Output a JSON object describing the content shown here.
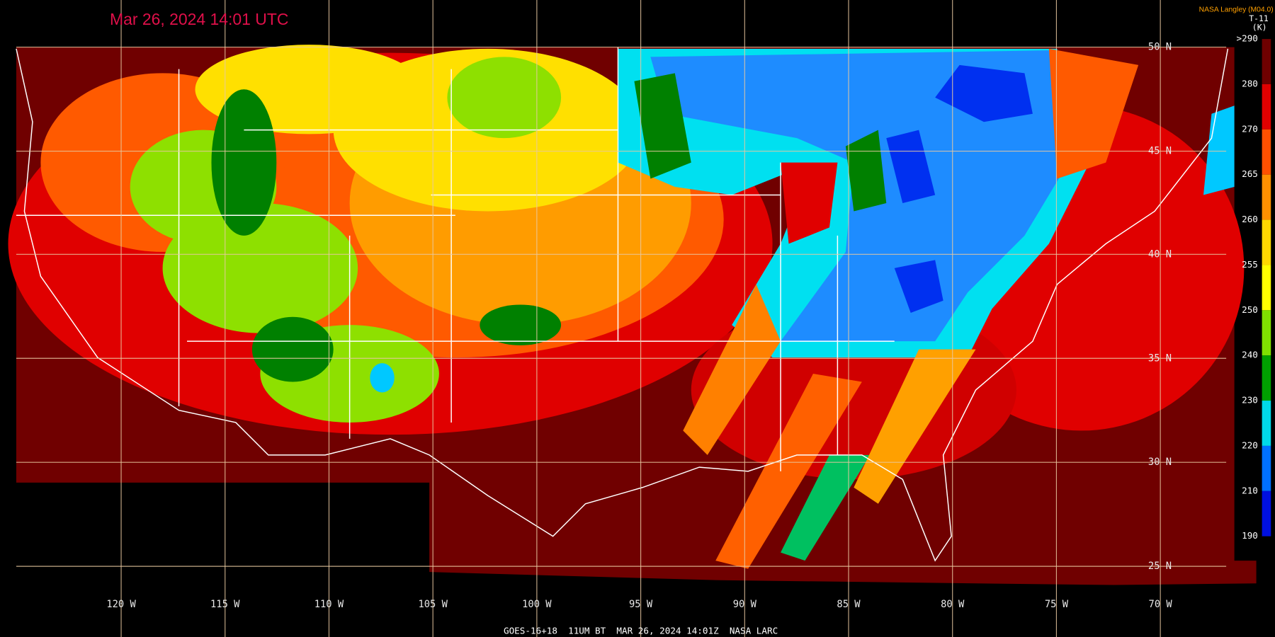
{
  "header": {
    "timestamp": "Mar 26, 2024 14:01 UTC",
    "credit": "NASA Langley (M04.0)",
    "product": "T-11",
    "unit": "(K)"
  },
  "grid": {
    "latitudes": [
      "50 N",
      "45 N",
      "40 N",
      "35 N",
      "30 N",
      "25 N"
    ],
    "longitudes": [
      "120 W",
      "115 W",
      "110 W",
      "105 W",
      "100 W",
      "95 W",
      "90 W",
      "85 W",
      "80 W",
      "75 W",
      "70 W"
    ]
  },
  "colorbar": {
    "labels": [
      ">290",
      "280",
      "270",
      "265",
      "260",
      "255",
      "250",
      "240",
      "230",
      "220",
      "210",
      "190"
    ]
  },
  "footer": "GOES-16+18  11UM BT  MAR 26, 2024 14:01Z  NASA LARC"
}
